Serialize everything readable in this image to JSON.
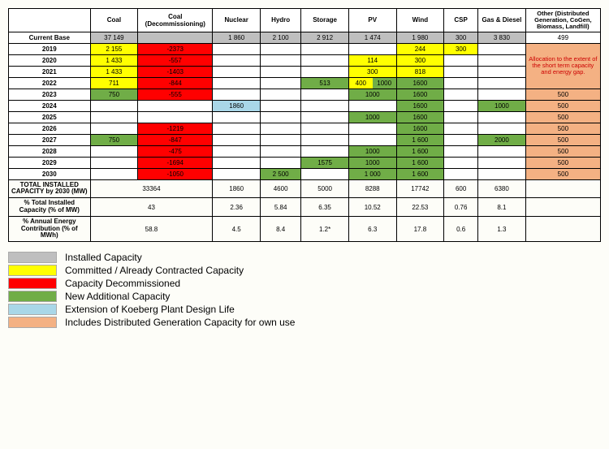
{
  "colors": {
    "installed": "#bfbfbf",
    "committed": "#ffff00",
    "decommissioned": "#ff0000",
    "new": "#70ad47",
    "koeberg": "#a9d7e8",
    "distributed": "#f4b183",
    "white": "#ffffff",
    "black": "#000000"
  },
  "headers": [
    "Coal",
    "Coal (Decommissioning)",
    "Nuclear",
    "Hydro",
    "Storage",
    "PV",
    "Wind",
    "CSP",
    "Gas & Diesel",
    "Other (Distributed Generation, CoGen, Biomass, Landfill)"
  ],
  "col_widths": [
    "12%",
    "7%",
    "10%",
    "7%",
    "6%",
    "7%",
    "7%",
    "7%",
    "5%",
    "7%",
    "11%"
  ],
  "current_base": {
    "label": "Current Base",
    "cells": [
      {
        "v": "37 149",
        "c": "installed"
      },
      {
        "v": "",
        "c": "installed"
      },
      {
        "v": "1 860",
        "c": "installed"
      },
      {
        "v": "2 100",
        "c": "installed"
      },
      {
        "v": "2 912",
        "c": "installed"
      },
      {
        "v": "1 474",
        "c": "installed"
      },
      {
        "v": "1 980",
        "c": "installed"
      },
      {
        "v": "300",
        "c": "installed"
      },
      {
        "v": "3 830",
        "c": "installed"
      },
      {
        "v": "499",
        "c": "white"
      }
    ]
  },
  "allocation_text": "Allocation to the extent of the short term capacity and energy gap.",
  "year_rows": [
    {
      "label": "2019",
      "cells": [
        {
          "v": "2 155",
          "c": "committed"
        },
        {
          "v": "-2373",
          "c": "decommissioned"
        },
        {
          "v": "",
          "c": "white"
        },
        {
          "v": "",
          "c": "white"
        },
        {
          "v": "",
          "c": "white"
        },
        {
          "v": "",
          "c": "white"
        },
        {
          "v": "244",
          "c": "committed"
        },
        {
          "v": "300",
          "c": "committed"
        },
        {
          "v": "",
          "c": "white"
        }
      ]
    },
    {
      "label": "2020",
      "cells": [
        {
          "v": "1 433",
          "c": "committed"
        },
        {
          "v": "-557",
          "c": "decommissioned"
        },
        {
          "v": "",
          "c": "white"
        },
        {
          "v": "",
          "c": "white"
        },
        {
          "v": "",
          "c": "white"
        },
        {
          "v": "114",
          "c": "committed"
        },
        {
          "v": "300",
          "c": "committed"
        },
        {
          "v": "",
          "c": "white"
        },
        {
          "v": "",
          "c": "white"
        }
      ]
    },
    {
      "label": "2021",
      "cells": [
        {
          "v": "1 433",
          "c": "committed"
        },
        {
          "v": "-1403",
          "c": "decommissioned"
        },
        {
          "v": "",
          "c": "white"
        },
        {
          "v": "",
          "c": "white"
        },
        {
          "v": "",
          "c": "white"
        },
        {
          "v": "300",
          "c": "committed"
        },
        {
          "v": "818",
          "c": "committed"
        },
        {
          "v": "",
          "c": "white"
        },
        {
          "v": "",
          "c": "white"
        }
      ]
    },
    {
      "label": "2022",
      "cells": [
        {
          "v": "711",
          "c": "committed"
        },
        {
          "v": "-844",
          "c": "decommissioned"
        },
        {
          "v": "",
          "c": "white"
        },
        {
          "v": "",
          "c": "white"
        },
        {
          "v": "513",
          "c": "new"
        },
        {
          "v": "400",
          "c": "committed",
          "split": {
            "v": "1000",
            "c": "new"
          }
        },
        {
          "v": "1600",
          "c": "new"
        },
        {
          "v": "",
          "c": "white"
        },
        {
          "v": "",
          "c": "white"
        }
      ]
    },
    {
      "label": "2023",
      "cells": [
        {
          "v": "750",
          "c": "new"
        },
        {
          "v": "-555",
          "c": "decommissioned"
        },
        {
          "v": "",
          "c": "white"
        },
        {
          "v": "",
          "c": "white"
        },
        {
          "v": "",
          "c": "white"
        },
        {
          "v": "1000",
          "c": "new"
        },
        {
          "v": "1600",
          "c": "new"
        },
        {
          "v": "",
          "c": "white"
        },
        {
          "v": "",
          "c": "white"
        }
      ],
      "other": {
        "v": "500",
        "c": "distributed"
      }
    },
    {
      "label": "2024",
      "cells": [
        {
          "v": "",
          "c": "white"
        },
        {
          "v": "",
          "c": "white"
        },
        {
          "v": "1860",
          "c": "koeberg"
        },
        {
          "v": "",
          "c": "white"
        },
        {
          "v": "",
          "c": "white"
        },
        {
          "v": "",
          "c": "white"
        },
        {
          "v": "1600",
          "c": "new"
        },
        {
          "v": "",
          "c": "white"
        },
        {
          "v": "1000",
          "c": "new"
        }
      ],
      "other": {
        "v": "500",
        "c": "distributed"
      }
    },
    {
      "label": "2025",
      "cells": [
        {
          "v": "",
          "c": "white"
        },
        {
          "v": "",
          "c": "white"
        },
        {
          "v": "",
          "c": "white"
        },
        {
          "v": "",
          "c": "white"
        },
        {
          "v": "",
          "c": "white"
        },
        {
          "v": "1000",
          "c": "new"
        },
        {
          "v": "1600",
          "c": "new"
        },
        {
          "v": "",
          "c": "white"
        },
        {
          "v": "",
          "c": "white"
        }
      ],
      "other": {
        "v": "500",
        "c": "distributed"
      }
    },
    {
      "label": "2026",
      "cells": [
        {
          "v": "",
          "c": "white"
        },
        {
          "v": "-1219",
          "c": "decommissioned"
        },
        {
          "v": "",
          "c": "white"
        },
        {
          "v": "",
          "c": "white"
        },
        {
          "v": "",
          "c": "white"
        },
        {
          "v": "",
          "c": "white"
        },
        {
          "v": "1600",
          "c": "new"
        },
        {
          "v": "",
          "c": "white"
        },
        {
          "v": "",
          "c": "white"
        }
      ],
      "other": {
        "v": "500",
        "c": "distributed"
      }
    },
    {
      "label": "2027",
      "cells": [
        {
          "v": "750",
          "c": "new"
        },
        {
          "v": "-847",
          "c": "decommissioned"
        },
        {
          "v": "",
          "c": "white"
        },
        {
          "v": "",
          "c": "white"
        },
        {
          "v": "",
          "c": "white"
        },
        {
          "v": "",
          "c": "white"
        },
        {
          "v": "1 600",
          "c": "new"
        },
        {
          "v": "",
          "c": "white"
        },
        {
          "v": "2000",
          "c": "new"
        }
      ],
      "other": {
        "v": "500",
        "c": "distributed"
      }
    },
    {
      "label": "2028",
      "cells": [
        {
          "v": "",
          "c": "white"
        },
        {
          "v": "-475",
          "c": "decommissioned"
        },
        {
          "v": "",
          "c": "white"
        },
        {
          "v": "",
          "c": "white"
        },
        {
          "v": "",
          "c": "white"
        },
        {
          "v": "1000",
          "c": "new"
        },
        {
          "v": "1 600",
          "c": "new"
        },
        {
          "v": "",
          "c": "white"
        },
        {
          "v": "",
          "c": "white"
        }
      ],
      "other": {
        "v": "500",
        "c": "distributed"
      }
    },
    {
      "label": "2029",
      "cells": [
        {
          "v": "",
          "c": "white"
        },
        {
          "v": "-1694",
          "c": "decommissioned"
        },
        {
          "v": "",
          "c": "white"
        },
        {
          "v": "",
          "c": "white"
        },
        {
          "v": "1575",
          "c": "new"
        },
        {
          "v": "1000",
          "c": "new"
        },
        {
          "v": "1 600",
          "c": "new"
        },
        {
          "v": "",
          "c": "white"
        },
        {
          "v": "",
          "c": "white"
        }
      ],
      "other": {
        "v": "500",
        "c": "distributed"
      }
    },
    {
      "label": "2030",
      "cells": [
        {
          "v": "",
          "c": "white"
        },
        {
          "v": "-1050",
          "c": "decommissioned"
        },
        {
          "v": "",
          "c": "white"
        },
        {
          "v": "2 500",
          "c": "new"
        },
        {
          "v": "",
          "c": "white"
        },
        {
          "v": "1 000",
          "c": "new"
        },
        {
          "v": "1 600",
          "c": "new"
        },
        {
          "v": "",
          "c": "white"
        },
        {
          "v": "",
          "c": "white"
        }
      ],
      "other": {
        "v": "500",
        "c": "distributed"
      }
    }
  ],
  "summary_rows": [
    {
      "label": "TOTAL INSTALLED CAPACITY by 2030 (MW)",
      "cells": [
        "33364",
        "1860",
        "4600",
        "5000",
        "8288",
        "17742",
        "600",
        "6380",
        ""
      ],
      "merge_first": true
    },
    {
      "label": "% Total Installed Capacity (% of MW)",
      "cells": [
        "43",
        "2.36",
        "5.84",
        "6.35",
        "10.52",
        "22.53",
        "0.76",
        "8.1",
        ""
      ],
      "merge_first": true
    },
    {
      "label": "% Annual Energy Contribution (% of MWh)",
      "cells": [
        "58.8",
        "4.5",
        "8.4",
        "1.2*",
        "6.3",
        "17.8",
        "0.6",
        "1.3",
        ""
      ],
      "merge_first": true
    }
  ],
  "legend": [
    {
      "c": "installed",
      "label": "Installed Capacity"
    },
    {
      "c": "committed",
      "label": "Committed / Already Contracted Capacity"
    },
    {
      "c": "decommissioned",
      "label": "Capacity Decommissioned"
    },
    {
      "c": "new",
      "label": "New Additional Capacity"
    },
    {
      "c": "koeberg",
      "label": "Extension of Koeberg Plant Design Life"
    },
    {
      "c": "distributed",
      "label": "Includes Distributed Generation Capacity for own use"
    }
  ]
}
